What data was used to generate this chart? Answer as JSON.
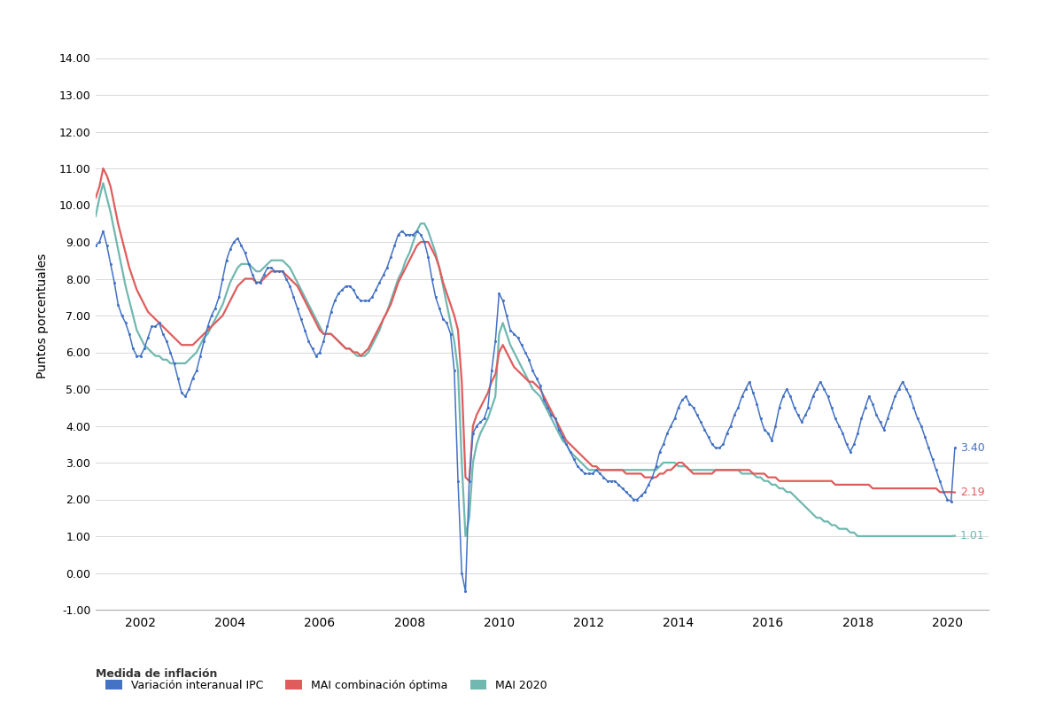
{
  "ylabel": "Puntos porcentuales",
  "xlabel_label": "Medida de inflación",
  "legend_entries": [
    "Variación interanual IPC",
    "MAI combinación óptima",
    "MAI 2020"
  ],
  "line_colors": [
    "#4472c4",
    "#e05c5c",
    "#70b8b0"
  ],
  "end_labels": [
    "3.40",
    "2.19",
    "1.01"
  ],
  "end_label_colors": [
    "#4472c4",
    "#e05c5c",
    "#70b8b0"
  ],
  "ylim": [
    -1.0,
    15.0
  ],
  "yticks": [
    -1.0,
    0.0,
    1.0,
    2.0,
    3.0,
    4.0,
    5.0,
    6.0,
    7.0,
    8.0,
    9.0,
    10.0,
    11.0,
    12.0,
    13.0,
    14.0
  ],
  "xlim": [
    2001.0,
    2020.92
  ],
  "xticks": [
    2002,
    2004,
    2006,
    2008,
    2010,
    2012,
    2014,
    2016,
    2018,
    2020
  ],
  "background_color": "#ffffff",
  "grid_color": "#d8d8d8",
  "start_year": 2001.0,
  "ipc": [
    8.9,
    9.0,
    9.3,
    8.9,
    8.4,
    7.9,
    7.3,
    7.0,
    6.8,
    6.5,
    6.1,
    5.9,
    5.9,
    6.1,
    6.4,
    6.7,
    6.7,
    6.8,
    6.5,
    6.3,
    6.0,
    5.7,
    5.3,
    4.9,
    4.8,
    5.0,
    5.3,
    5.5,
    5.9,
    6.3,
    6.7,
    7.0,
    7.2,
    7.5,
    8.0,
    8.5,
    8.8,
    9.0,
    9.1,
    8.9,
    8.7,
    8.4,
    8.1,
    7.9,
    7.9,
    8.1,
    8.3,
    8.3,
    8.2,
    8.2,
    8.2,
    8.0,
    7.8,
    7.5,
    7.2,
    6.9,
    6.6,
    6.3,
    6.1,
    5.9,
    6.0,
    6.3,
    6.7,
    7.1,
    7.4,
    7.6,
    7.7,
    7.8,
    7.8,
    7.7,
    7.5,
    7.4,
    7.4,
    7.4,
    7.5,
    7.7,
    7.9,
    8.1,
    8.3,
    8.6,
    8.9,
    9.2,
    9.3,
    9.2,
    9.2,
    9.2,
    9.3,
    9.2,
    9.0,
    8.6,
    8.0,
    7.5,
    7.2,
    6.9,
    6.8,
    6.5,
    5.5,
    2.5,
    0.0,
    -0.5,
    2.5,
    3.8,
    4.0,
    4.1,
    4.2,
    4.5,
    5.5,
    6.3,
    7.6,
    7.4,
    7.0,
    6.6,
    6.5,
    6.4,
    6.2,
    6.0,
    5.8,
    5.5,
    5.3,
    5.1,
    4.7,
    4.5,
    4.3,
    4.2,
    3.9,
    3.7,
    3.5,
    3.3,
    3.1,
    2.9,
    2.8,
    2.7,
    2.7,
    2.7,
    2.8,
    2.7,
    2.6,
    2.5,
    2.5,
    2.5,
    2.4,
    2.3,
    2.2,
    2.1,
    2.0,
    2.0,
    2.1,
    2.2,
    2.4,
    2.6,
    2.9,
    3.3,
    3.5,
    3.8,
    4.0,
    4.2,
    4.5,
    4.7,
    4.8,
    4.6,
    4.5,
    4.3,
    4.1,
    3.9,
    3.7,
    3.5,
    3.4,
    3.4,
    3.5,
    3.8,
    4.0,
    4.3,
    4.5,
    4.8,
    5.0,
    5.2,
    4.9,
    4.6,
    4.2,
    3.9,
    3.8,
    3.6,
    4.0,
    4.5,
    4.8,
    5.0,
    4.8,
    4.5,
    4.3,
    4.1,
    4.3,
    4.5,
    4.8,
    5.0,
    5.2,
    5.0,
    4.8,
    4.5,
    4.2,
    4.0,
    3.8,
    3.5,
    3.3,
    3.5,
    3.8,
    4.2,
    4.5,
    4.8,
    4.6,
    4.3,
    4.1,
    3.9,
    4.2,
    4.5,
    4.8,
    5.0,
    5.2,
    5.0,
    4.8,
    4.5,
    4.2,
    4.0,
    3.7,
    3.4,
    3.1,
    2.8,
    2.5,
    2.2,
    2.0,
    1.95,
    3.4
  ],
  "mai_combo": [
    10.2,
    10.5,
    11.0,
    10.8,
    10.5,
    10.0,
    9.5,
    9.1,
    8.7,
    8.3,
    8.0,
    7.7,
    7.5,
    7.3,
    7.1,
    7.0,
    6.9,
    6.8,
    6.7,
    6.6,
    6.5,
    6.4,
    6.3,
    6.2,
    6.2,
    6.2,
    6.2,
    6.3,
    6.4,
    6.5,
    6.6,
    6.7,
    6.8,
    6.9,
    7.0,
    7.2,
    7.4,
    7.6,
    7.8,
    7.9,
    8.0,
    8.0,
    8.0,
    7.9,
    7.9,
    8.0,
    8.1,
    8.2,
    8.2,
    8.2,
    8.2,
    8.1,
    8.0,
    7.9,
    7.8,
    7.6,
    7.4,
    7.2,
    7.0,
    6.8,
    6.6,
    6.5,
    6.5,
    6.5,
    6.4,
    6.3,
    6.2,
    6.1,
    6.1,
    6.0,
    6.0,
    5.9,
    6.0,
    6.1,
    6.3,
    6.5,
    6.7,
    6.9,
    7.1,
    7.3,
    7.6,
    7.9,
    8.1,
    8.3,
    8.5,
    8.7,
    8.9,
    9.0,
    9.0,
    9.0,
    8.8,
    8.6,
    8.3,
    7.9,
    7.6,
    7.3,
    7.0,
    6.6,
    5.2,
    2.6,
    2.5,
    4.0,
    4.3,
    4.5,
    4.7,
    4.9,
    5.2,
    5.4,
    6.0,
    6.2,
    6.0,
    5.8,
    5.6,
    5.5,
    5.4,
    5.3,
    5.2,
    5.2,
    5.1,
    5.0,
    4.8,
    4.6,
    4.4,
    4.2,
    4.0,
    3.8,
    3.6,
    3.5,
    3.4,
    3.3,
    3.2,
    3.1,
    3.0,
    2.9,
    2.9,
    2.8,
    2.8,
    2.8,
    2.8,
    2.8,
    2.8,
    2.8,
    2.7,
    2.7,
    2.7,
    2.7,
    2.7,
    2.6,
    2.6,
    2.6,
    2.6,
    2.7,
    2.7,
    2.8,
    2.8,
    2.9,
    3.0,
    3.0,
    2.9,
    2.8,
    2.7,
    2.7,
    2.7,
    2.7,
    2.7,
    2.7,
    2.8,
    2.8,
    2.8,
    2.8,
    2.8,
    2.8,
    2.8,
    2.8,
    2.8,
    2.8,
    2.7,
    2.7,
    2.7,
    2.7,
    2.6,
    2.6,
    2.6,
    2.5,
    2.5,
    2.5,
    2.5,
    2.5,
    2.5,
    2.5,
    2.5,
    2.5,
    2.5,
    2.5,
    2.5,
    2.5,
    2.5,
    2.5,
    2.4,
    2.4,
    2.4,
    2.4,
    2.4,
    2.4,
    2.4,
    2.4,
    2.4,
    2.4,
    2.3,
    2.3,
    2.3,
    2.3,
    2.3,
    2.3,
    2.3,
    2.3,
    2.3,
    2.3,
    2.3,
    2.3,
    2.3,
    2.3,
    2.3,
    2.3,
    2.3,
    2.3,
    2.2,
    2.2,
    2.2,
    2.2,
    2.19
  ],
  "mai2020": [
    9.7,
    10.2,
    10.6,
    10.2,
    9.8,
    9.3,
    8.8,
    8.3,
    7.8,
    7.4,
    7.0,
    6.6,
    6.4,
    6.2,
    6.1,
    6.0,
    5.9,
    5.9,
    5.8,
    5.8,
    5.7,
    5.7,
    5.7,
    5.7,
    5.7,
    5.8,
    5.9,
    6.0,
    6.2,
    6.4,
    6.5,
    6.7,
    6.9,
    7.1,
    7.3,
    7.6,
    7.9,
    8.1,
    8.3,
    8.4,
    8.4,
    8.4,
    8.3,
    8.2,
    8.2,
    8.3,
    8.4,
    8.5,
    8.5,
    8.5,
    8.5,
    8.4,
    8.3,
    8.1,
    7.9,
    7.7,
    7.5,
    7.3,
    7.1,
    6.9,
    6.7,
    6.5,
    6.5,
    6.5,
    6.4,
    6.3,
    6.2,
    6.1,
    6.1,
    6.0,
    5.9,
    5.9,
    5.9,
    6.0,
    6.2,
    6.4,
    6.6,
    6.9,
    7.1,
    7.4,
    7.7,
    8.0,
    8.2,
    8.5,
    8.7,
    9.0,
    9.3,
    9.5,
    9.5,
    9.3,
    9.0,
    8.7,
    8.3,
    7.8,
    7.3,
    6.8,
    6.3,
    5.5,
    3.0,
    1.0,
    1.5,
    3.0,
    3.5,
    3.8,
    4.0,
    4.2,
    4.5,
    4.8,
    6.5,
    6.8,
    6.5,
    6.2,
    6.0,
    5.8,
    5.6,
    5.4,
    5.2,
    5.0,
    4.9,
    4.8,
    4.6,
    4.4,
    4.2,
    4.0,
    3.8,
    3.6,
    3.5,
    3.3,
    3.2,
    3.1,
    3.0,
    2.9,
    2.8,
    2.8,
    2.8,
    2.8,
    2.8,
    2.8,
    2.8,
    2.8,
    2.8,
    2.8,
    2.8,
    2.8,
    2.8,
    2.8,
    2.8,
    2.8,
    2.8,
    2.8,
    2.8,
    2.9,
    3.0,
    3.0,
    3.0,
    3.0,
    2.9,
    2.9,
    2.9,
    2.8,
    2.8,
    2.8,
    2.8,
    2.8,
    2.8,
    2.8,
    2.8,
    2.8,
    2.8,
    2.8,
    2.8,
    2.8,
    2.8,
    2.7,
    2.7,
    2.7,
    2.7,
    2.6,
    2.6,
    2.5,
    2.5,
    2.4,
    2.4,
    2.3,
    2.3,
    2.2,
    2.2,
    2.1,
    2.0,
    1.9,
    1.8,
    1.7,
    1.6,
    1.5,
    1.5,
    1.4,
    1.4,
    1.3,
    1.3,
    1.2,
    1.2,
    1.2,
    1.1,
    1.1,
    1.0,
    1.0,
    1.0,
    1.0,
    1.0,
    1.0,
    1.0,
    1.0,
    1.0,
    1.0,
    1.0,
    1.0,
    1.0,
    1.0,
    1.0,
    1.0,
    1.0,
    1.0,
    1.0,
    1.0,
    1.0,
    1.0,
    1.0,
    1.0,
    1.0,
    1.0,
    1.01
  ]
}
